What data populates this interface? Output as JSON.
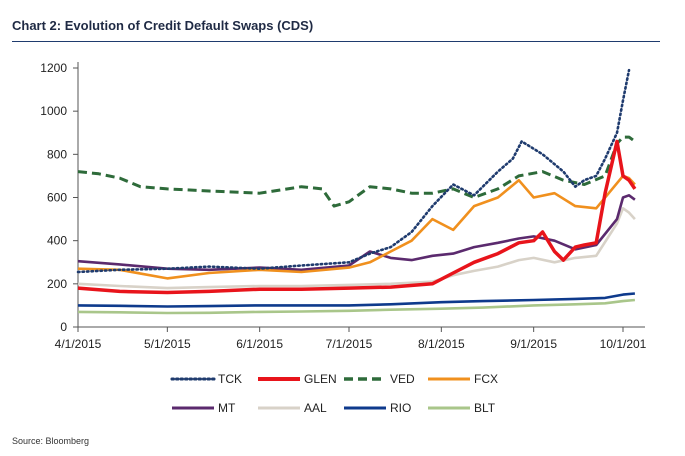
{
  "chart_data": {
    "type": "line",
    "title": "Chart 2: Evolution of Credit Default Swaps (CDS)",
    "source": "Source: Bloomberg",
    "xlabel": "",
    "ylabel": "",
    "ylim": [
      0,
      1200
    ],
    "yticks": [
      0,
      200,
      400,
      600,
      800,
      1000,
      1200
    ],
    "xlim": [
      "2015-04-01",
      "2015-10-05"
    ],
    "xticks": [
      "2015-04-01",
      "2015-05-01",
      "2015-06-01",
      "2015-07-01",
      "2015-08-01",
      "2015-09-01",
      "2015-10-01"
    ],
    "xtick_labels": [
      "4/1/2015",
      "5/1/2015",
      "6/1/2015",
      "7/1/2015",
      "8/1/2015",
      "9/1/2015",
      "10/1/201"
    ],
    "grid": false,
    "legend_position": "bottom",
    "series": [
      {
        "name": "TCK",
        "color": "#1f3b6e",
        "style": "dotted",
        "x": [
          "2015-04-01",
          "2015-04-15",
          "2015-05-01",
          "2015-05-15",
          "2015-06-01",
          "2015-06-15",
          "2015-07-01",
          "2015-07-08",
          "2015-07-15",
          "2015-07-22",
          "2015-07-29",
          "2015-08-05",
          "2015-08-12",
          "2015-08-20",
          "2015-08-25",
          "2015-08-28",
          "2015-09-04",
          "2015-09-11",
          "2015-09-15",
          "2015-09-18",
          "2015-09-22",
          "2015-09-25",
          "2015-09-29",
          "2015-10-01",
          "2015-10-03"
        ],
        "y": [
          255,
          265,
          270,
          280,
          270,
          285,
          300,
          340,
          370,
          440,
          560,
          660,
          610,
          720,
          780,
          860,
          800,
          720,
          650,
          680,
          700,
          780,
          900,
          1050,
          1190
        ]
      },
      {
        "name": "GLEN",
        "color": "#e8141b",
        "style": "solid",
        "x": [
          "2015-04-01",
          "2015-04-15",
          "2015-05-01",
          "2015-05-15",
          "2015-06-01",
          "2015-06-15",
          "2015-07-01",
          "2015-07-15",
          "2015-07-29",
          "2015-08-05",
          "2015-08-12",
          "2015-08-20",
          "2015-08-27",
          "2015-09-01",
          "2015-09-04",
          "2015-09-08",
          "2015-09-11",
          "2015-09-15",
          "2015-09-18",
          "2015-09-22",
          "2015-09-25",
          "2015-09-29",
          "2015-10-01",
          "2015-10-03",
          "2015-10-05"
        ],
        "y": [
          180,
          165,
          160,
          165,
          175,
          175,
          180,
          185,
          200,
          250,
          300,
          340,
          390,
          400,
          440,
          350,
          310,
          370,
          380,
          390,
          620,
          860,
          700,
          680,
          640
        ]
      },
      {
        "name": "VED",
        "color": "#2e6b3a",
        "style": "dashed",
        "x": [
          "2015-04-01",
          "2015-04-08",
          "2015-04-15",
          "2015-04-22",
          "2015-05-01",
          "2015-05-15",
          "2015-06-01",
          "2015-06-15",
          "2015-06-22",
          "2015-06-26",
          "2015-07-01",
          "2015-07-08",
          "2015-07-15",
          "2015-07-22",
          "2015-07-29",
          "2015-08-05",
          "2015-08-12",
          "2015-08-20",
          "2015-08-27",
          "2015-09-04",
          "2015-09-11",
          "2015-09-18",
          "2015-09-25",
          "2015-09-29",
          "2015-10-01",
          "2015-10-03",
          "2015-10-05"
        ],
        "y": [
          720,
          710,
          690,
          650,
          640,
          630,
          620,
          650,
          640,
          560,
          580,
          650,
          640,
          620,
          620,
          640,
          600,
          640,
          700,
          720,
          680,
          660,
          700,
          850,
          880,
          880,
          860
        ]
      },
      {
        "name": "FCX",
        "color": "#f0901e",
        "style": "solid",
        "x": [
          "2015-04-01",
          "2015-04-15",
          "2015-05-01",
          "2015-05-15",
          "2015-06-01",
          "2015-06-15",
          "2015-07-01",
          "2015-07-08",
          "2015-07-15",
          "2015-07-22",
          "2015-07-29",
          "2015-08-05",
          "2015-08-12",
          "2015-08-20",
          "2015-08-27",
          "2015-09-01",
          "2015-09-08",
          "2015-09-15",
          "2015-09-22",
          "2015-10-01",
          "2015-10-03",
          "2015-10-05"
        ],
        "y": [
          270,
          265,
          225,
          250,
          265,
          255,
          275,
          300,
          350,
          400,
          500,
          450,
          560,
          600,
          680,
          600,
          620,
          560,
          550,
          700,
          690,
          660
        ]
      },
      {
        "name": "MT",
        "color": "#5b2a6e",
        "style": "solid",
        "x": [
          "2015-04-01",
          "2015-04-15",
          "2015-05-01",
          "2015-05-15",
          "2015-06-01",
          "2015-06-15",
          "2015-07-01",
          "2015-07-08",
          "2015-07-15",
          "2015-07-22",
          "2015-07-29",
          "2015-08-05",
          "2015-08-12",
          "2015-08-20",
          "2015-08-27",
          "2015-09-01",
          "2015-09-08",
          "2015-09-15",
          "2015-09-22",
          "2015-09-29",
          "2015-10-01",
          "2015-10-03",
          "2015-10-05"
        ],
        "y": [
          305,
          290,
          270,
          265,
          275,
          265,
          285,
          350,
          320,
          310,
          330,
          340,
          370,
          390,
          410,
          420,
          400,
          360,
          380,
          500,
          600,
          610,
          590
        ]
      },
      {
        "name": "AAL",
        "color": "#d8d2c8",
        "style": "solid",
        "x": [
          "2015-04-01",
          "2015-04-15",
          "2015-05-01",
          "2015-05-15",
          "2015-06-01",
          "2015-06-15",
          "2015-07-01",
          "2015-07-15",
          "2015-07-29",
          "2015-08-05",
          "2015-08-12",
          "2015-08-20",
          "2015-08-27",
          "2015-09-01",
          "2015-09-08",
          "2015-09-15",
          "2015-09-22",
          "2015-09-29",
          "2015-10-01",
          "2015-10-03",
          "2015-10-05"
        ],
        "y": [
          200,
          190,
          180,
          185,
          190,
          190,
          195,
          200,
          210,
          240,
          260,
          280,
          310,
          320,
          300,
          320,
          330,
          480,
          550,
          530,
          500
        ]
      },
      {
        "name": "RIO",
        "color": "#0e3a8c",
        "style": "solid",
        "x": [
          "2015-04-01",
          "2015-04-15",
          "2015-05-01",
          "2015-05-15",
          "2015-06-01",
          "2015-06-15",
          "2015-07-01",
          "2015-07-15",
          "2015-08-01",
          "2015-08-15",
          "2015-09-01",
          "2015-09-15",
          "2015-09-25",
          "2015-10-01",
          "2015-10-05"
        ],
        "y": [
          100,
          98,
          95,
          97,
          100,
          100,
          100,
          105,
          115,
          120,
          125,
          130,
          135,
          150,
          155
        ]
      },
      {
        "name": "BLT",
        "color": "#a9c68a",
        "style": "solid",
        "x": [
          "2015-04-01",
          "2015-04-15",
          "2015-05-01",
          "2015-05-15",
          "2015-06-01",
          "2015-06-15",
          "2015-07-01",
          "2015-07-15",
          "2015-08-01",
          "2015-08-15",
          "2015-09-01",
          "2015-09-15",
          "2015-09-25",
          "2015-10-01",
          "2015-10-05"
        ],
        "y": [
          70,
          68,
          65,
          66,
          70,
          72,
          75,
          80,
          85,
          90,
          100,
          105,
          110,
          120,
          125
        ]
      }
    ]
  }
}
